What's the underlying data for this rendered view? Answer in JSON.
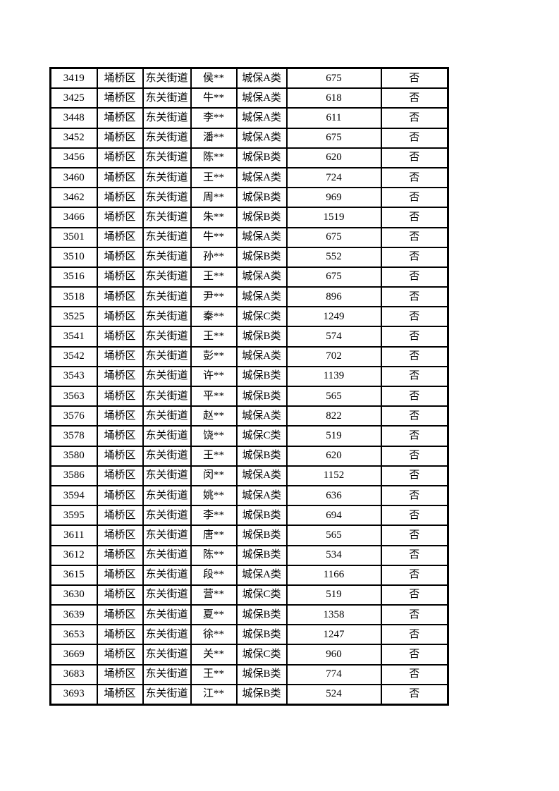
{
  "page": {
    "background_color": "#ffffff",
    "text_color": "#000000",
    "border_color": "#000000"
  },
  "table": {
    "column_keys": [
      "serial-number",
      "district",
      "street",
      "person-name",
      "category",
      "amount",
      "flag"
    ],
    "rows": [
      [
        "3419",
        "埇桥区",
        "东关街道",
        "侯**",
        "城保A类",
        "675",
        "否"
      ],
      [
        "3425",
        "埇桥区",
        "东关街道",
        "牛**",
        "城保A类",
        "618",
        "否"
      ],
      [
        "3448",
        "埇桥区",
        "东关街道",
        "李**",
        "城保A类",
        "611",
        "否"
      ],
      [
        "3452",
        "埇桥区",
        "东关街道",
        "潘**",
        "城保A类",
        "675",
        "否"
      ],
      [
        "3456",
        "埇桥区",
        "东关街道",
        "陈**",
        "城保B类",
        "620",
        "否"
      ],
      [
        "3460",
        "埇桥区",
        "东关街道",
        "王**",
        "城保A类",
        "724",
        "否"
      ],
      [
        "3462",
        "埇桥区",
        "东关街道",
        "周**",
        "城保B类",
        "969",
        "否"
      ],
      [
        "3466",
        "埇桥区",
        "东关街道",
        "朱**",
        "城保B类",
        "1519",
        "否"
      ],
      [
        "3501",
        "埇桥区",
        "东关街道",
        "牛**",
        "城保A类",
        "675",
        "否"
      ],
      [
        "3510",
        "埇桥区",
        "东关街道",
        "孙**",
        "城保B类",
        "552",
        "否"
      ],
      [
        "3516",
        "埇桥区",
        "东关街道",
        "王**",
        "城保A类",
        "675",
        "否"
      ],
      [
        "3518",
        "埇桥区",
        "东关街道",
        "尹**",
        "城保A类",
        "896",
        "否"
      ],
      [
        "3525",
        "埇桥区",
        "东关街道",
        "秦**",
        "城保C类",
        "1249",
        "否"
      ],
      [
        "3541",
        "埇桥区",
        "东关街道",
        "王**",
        "城保B类",
        "574",
        "否"
      ],
      [
        "3542",
        "埇桥区",
        "东关街道",
        "彭**",
        "城保A类",
        "702",
        "否"
      ],
      [
        "3543",
        "埇桥区",
        "东关街道",
        "许**",
        "城保B类",
        "1139",
        "否"
      ],
      [
        "3563",
        "埇桥区",
        "东关街道",
        "平**",
        "城保B类",
        "565",
        "否"
      ],
      [
        "3576",
        "埇桥区",
        "东关街道",
        "赵**",
        "城保A类",
        "822",
        "否"
      ],
      [
        "3578",
        "埇桥区",
        "东关街道",
        "饶**",
        "城保C类",
        "519",
        "否"
      ],
      [
        "3580",
        "埇桥区",
        "东关街道",
        "王**",
        "城保B类",
        "620",
        "否"
      ],
      [
        "3586",
        "埇桥区",
        "东关街道",
        "闵**",
        "城保A类",
        "1152",
        "否"
      ],
      [
        "3594",
        "埇桥区",
        "东关街道",
        "姚**",
        "城保A类",
        "636",
        "否"
      ],
      [
        "3595",
        "埇桥区",
        "东关街道",
        "李**",
        "城保B类",
        "694",
        "否"
      ],
      [
        "3611",
        "埇桥区",
        "东关街道",
        "唐**",
        "城保B类",
        "565",
        "否"
      ],
      [
        "3612",
        "埇桥区",
        "东关街道",
        "陈**",
        "城保B类",
        "534",
        "否"
      ],
      [
        "3615",
        "埇桥区",
        "东关街道",
        "段**",
        "城保A类",
        "1166",
        "否"
      ],
      [
        "3630",
        "埇桥区",
        "东关街道",
        "营**",
        "城保C类",
        "519",
        "否"
      ],
      [
        "3639",
        "埇桥区",
        "东关街道",
        "夏**",
        "城保B类",
        "1358",
        "否"
      ],
      [
        "3653",
        "埇桥区",
        "东关街道",
        "徐**",
        "城保B类",
        "1247",
        "否"
      ],
      [
        "3669",
        "埇桥区",
        "东关街道",
        "关**",
        "城保C类",
        "960",
        "否"
      ],
      [
        "3683",
        "埇桥区",
        "东关街道",
        "王**",
        "城保B类",
        "774",
        "否"
      ],
      [
        "3693",
        "埇桥区",
        "东关街道",
        "江**",
        "城保B类",
        "524",
        "否"
      ]
    ]
  }
}
